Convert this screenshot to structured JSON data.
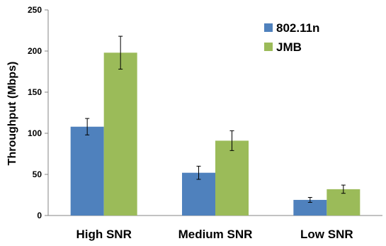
{
  "chart_data": {
    "type": "bar",
    "title": "",
    "xlabel": "",
    "ylabel": "Throughput (Mbps)",
    "ylim": [
      0,
      250
    ],
    "yticks": [
      0,
      50,
      100,
      150,
      200,
      250
    ],
    "categories": [
      "High SNR",
      "Medium SNR",
      "Low SNR"
    ],
    "series": [
      {
        "name": "802.11n",
        "color": "#4f81bd",
        "values": [
          108,
          52,
          19
        ],
        "errors": [
          10,
          8,
          3
        ]
      },
      {
        "name": "JMB",
        "color": "#9bbb59",
        "values": [
          198,
          91,
          32
        ],
        "errors": [
          20,
          12,
          5
        ]
      }
    ],
    "grid": false,
    "legend_position": "top-right"
  }
}
